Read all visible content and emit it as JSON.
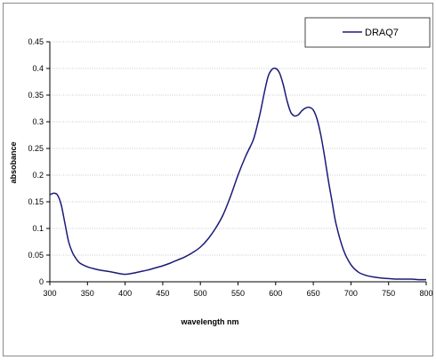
{
  "chart_data": {
    "type": "line",
    "title": "",
    "xlabel": "wavelength nm",
    "ylabel": "absobance",
    "xlim": [
      300,
      800
    ],
    "ylim": [
      0,
      0.45
    ],
    "x_ticks": [
      "300",
      "350",
      "400",
      "450",
      "500",
      "550",
      "600",
      "650",
      "700",
      "750",
      "800"
    ],
    "y_ticks": [
      "0",
      "0.05",
      "0.1",
      "0.15",
      "0.2",
      "0.25",
      "0.3",
      "0.35",
      "0.4",
      "0.45"
    ],
    "grid": "horizontal",
    "legend_position": "top-right",
    "series": [
      {
        "name": "DRAQ7",
        "color": "#1a1a7a",
        "x": [
          300,
          305,
          310,
          315,
          320,
          325,
          330,
          335,
          340,
          350,
          360,
          370,
          380,
          390,
          400,
          410,
          420,
          430,
          440,
          450,
          460,
          470,
          480,
          490,
          500,
          510,
          520,
          530,
          540,
          550,
          560,
          570,
          575,
          580,
          585,
          590,
          595,
          600,
          605,
          610,
          615,
          620,
          625,
          630,
          635,
          640,
          645,
          650,
          655,
          660,
          665,
          670,
          675,
          680,
          690,
          700,
          710,
          720,
          730,
          740,
          750,
          760,
          770,
          780,
          790,
          800
        ],
        "y": [
          0.163,
          0.166,
          0.163,
          0.145,
          0.11,
          0.075,
          0.055,
          0.043,
          0.035,
          0.028,
          0.024,
          0.021,
          0.019,
          0.016,
          0.014,
          0.016,
          0.019,
          0.022,
          0.026,
          0.03,
          0.035,
          0.041,
          0.047,
          0.055,
          0.065,
          0.08,
          0.1,
          0.125,
          0.16,
          0.2,
          0.235,
          0.265,
          0.29,
          0.32,
          0.355,
          0.385,
          0.398,
          0.4,
          0.392,
          0.37,
          0.34,
          0.318,
          0.311,
          0.313,
          0.321,
          0.326,
          0.327,
          0.322,
          0.305,
          0.275,
          0.235,
          0.19,
          0.15,
          0.11,
          0.06,
          0.032,
          0.018,
          0.012,
          0.009,
          0.007,
          0.006,
          0.005,
          0.005,
          0.005,
          0.004,
          0.004
        ]
      }
    ]
  }
}
